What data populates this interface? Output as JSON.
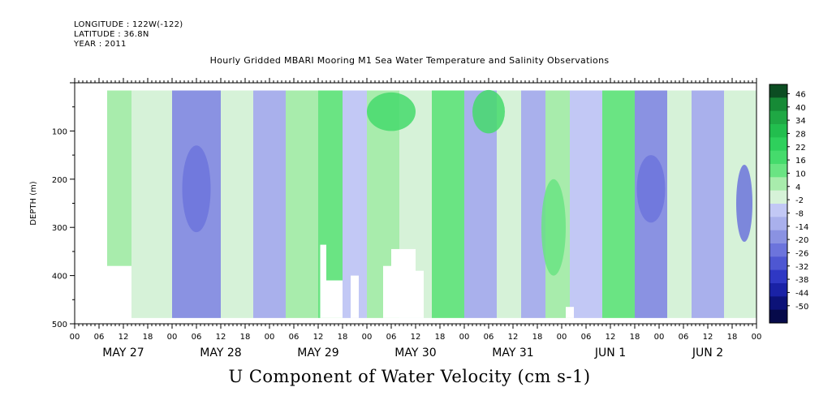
{
  "header": {
    "longitude": "LONGITUDE : 122W(-122)",
    "latitude": "LATITUDE : 36.8N",
    "year": "YEAR : 2011"
  },
  "chart_data": {
    "type": "heatmap",
    "title": "Hourly Gridded MBARI Mooring M1 Sea Water Temperature and Salinity Observations",
    "xlabel": "U Component of Water Velocity (cm s-1)",
    "ylabel": "DEPTH (m)",
    "x_tick_hours": [
      "00",
      "06",
      "12",
      "18",
      "00",
      "06",
      "12",
      "18",
      "00",
      "06",
      "12",
      "18",
      "00",
      "06",
      "12",
      "18",
      "00",
      "06",
      "12",
      "18",
      "00",
      "06",
      "12",
      "18",
      "00",
      "06",
      "12",
      "18",
      "00"
    ],
    "x_date_labels": [
      "MAY 27",
      "MAY 28",
      "MAY 29",
      "MAY 30",
      "MAY 31",
      "JUN  1",
      "JUN  2"
    ],
    "xlim_hours_from_may27": [
      0,
      168
    ],
    "y_ticks": [
      100,
      200,
      300,
      400,
      500
    ],
    "ylim": [
      500,
      0
    ],
    "data_extent": {
      "x_hours_from_may27": [
        8,
        168
      ],
      "depth_m": [
        16,
        488
      ]
    },
    "colorbar_labels": [
      "46",
      "40",
      "34",
      "28",
      "22",
      "16",
      "10",
      "4",
      "-2",
      "-8",
      "-14",
      "-20",
      "-26",
      "-32",
      "-38",
      "-44",
      "-50"
    ],
    "colorbar_range": [
      -50,
      50
    ],
    "colorbar_colors": [
      "#0c4d22",
      "#168a36",
      "#1fa844",
      "#22be4e",
      "#2ed05c",
      "#45db6c",
      "#6ae483",
      "#a8ecac",
      "#d6f2d8",
      "#c2c8f5",
      "#a9b0ec",
      "#8a92e2",
      "#6c74dc",
      "#4e57d2",
      "#2f38c4",
      "#1a22a6",
      "#0c1278",
      "#060a4a"
    ],
    "bands": [
      {
        "hours": [
          8,
          14
        ],
        "depth_m": [
          16,
          380
        ],
        "value": 8
      },
      {
        "hours": [
          14,
          24
        ],
        "depth_m": [
          16,
          488
        ],
        "value": 4
      },
      {
        "hours": [
          24,
          36
        ],
        "depth_m": [
          16,
          488
        ],
        "value": -12
      },
      {
        "hours": [
          36,
          44
        ],
        "depth_m": [
          16,
          488
        ],
        "value": 2
      },
      {
        "hours": [
          44,
          52
        ],
        "depth_m": [
          16,
          488
        ],
        "value": -8
      },
      {
        "hours": [
          52,
          60
        ],
        "depth_m": [
          16,
          488
        ],
        "value": 6
      },
      {
        "hours": [
          60,
          66
        ],
        "depth_m": [
          16,
          488
        ],
        "value": 12
      },
      {
        "hours": [
          66,
          72
        ],
        "depth_m": [
          16,
          488
        ],
        "value": -4
      },
      {
        "hours": [
          72,
          80
        ],
        "depth_m": [
          16,
          488
        ],
        "value": 10
      },
      {
        "hours": [
          80,
          88
        ],
        "depth_m": [
          16,
          488
        ],
        "value": 4
      },
      {
        "hours": [
          88,
          96
        ],
        "depth_m": [
          16,
          488
        ],
        "value": 14
      },
      {
        "hours": [
          96,
          104
        ],
        "depth_m": [
          16,
          488
        ],
        "value": -6
      },
      {
        "hours": [
          104,
          110
        ],
        "depth_m": [
          16,
          488
        ],
        "value": 2
      },
      {
        "hours": [
          110,
          116
        ],
        "depth_m": [
          16,
          488
        ],
        "value": -10
      },
      {
        "hours": [
          116,
          122
        ],
        "depth_m": [
          16,
          488
        ],
        "value": 8
      },
      {
        "hours": [
          122,
          130
        ],
        "depth_m": [
          16,
          488
        ],
        "value": -4
      },
      {
        "hours": [
          130,
          138
        ],
        "depth_m": [
          16,
          488
        ],
        "value": 12
      },
      {
        "hours": [
          138,
          146
        ],
        "depth_m": [
          16,
          488
        ],
        "value": -14
      },
      {
        "hours": [
          146,
          152
        ],
        "depth_m": [
          16,
          488
        ],
        "value": 4
      },
      {
        "hours": [
          152,
          160
        ],
        "depth_m": [
          16,
          488
        ],
        "value": -8
      },
      {
        "hours": [
          160,
          168
        ],
        "depth_m": [
          16,
          488
        ],
        "value": 2
      }
    ],
    "blobs": [
      {
        "hour": 30,
        "depth_m": 220,
        "rx_h": 3.5,
        "ry_m": 90,
        "value": -22
      },
      {
        "hour": 78,
        "depth_m": 60,
        "rx_h": 6,
        "ry_m": 40,
        "value": 22
      },
      {
        "hour": 102,
        "depth_m": 60,
        "rx_h": 4,
        "ry_m": 45,
        "value": 18
      },
      {
        "hour": 118,
        "depth_m": 300,
        "rx_h": 3,
        "ry_m": 100,
        "value": 16
      },
      {
        "hour": 142,
        "depth_m": 220,
        "rx_h": 3.5,
        "ry_m": 70,
        "value": -22
      },
      {
        "hour": 165,
        "depth_m": 250,
        "rx_h": 2,
        "ry_m": 80,
        "value": -18
      }
    ],
    "missing_gaps": [
      {
        "hours": [
          60.5,
          62
        ],
        "depth_m": [
          336,
          488
        ]
      },
      {
        "hours": [
          62,
          66
        ],
        "depth_m": [
          410,
          488
        ]
      },
      {
        "hours": [
          68,
          70
        ],
        "depth_m": [
          400,
          488
        ]
      },
      {
        "hours": [
          76,
          78
        ],
        "depth_m": [
          380,
          488
        ]
      },
      {
        "hours": [
          78,
          84
        ],
        "depth_m": [
          345,
          488
        ]
      },
      {
        "hours": [
          84,
          86
        ],
        "depth_m": [
          390,
          488
        ]
      },
      {
        "hours": [
          121,
          123
        ],
        "depth_m": [
          465,
          488
        ]
      }
    ]
  }
}
